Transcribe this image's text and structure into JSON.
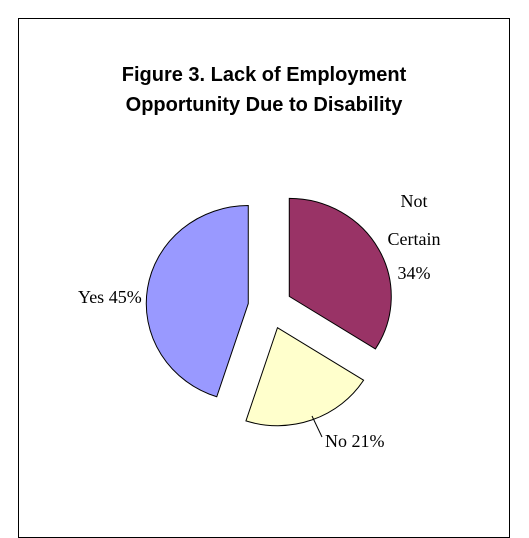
{
  "chart_data": {
    "type": "pie",
    "title": [
      "Figure 3.  Lack of Employment",
      "Opportunity Due to Disability"
    ],
    "slices": [
      {
        "label": "Not Certain",
        "value": 34,
        "text_lines": [
          "Not",
          "Certain",
          "34%"
        ],
        "color": "#993366"
      },
      {
        "label": "No",
        "value": 21,
        "text_lines": [
          "No 21%"
        ],
        "color": "#FFFFCC"
      },
      {
        "label": "Yes",
        "value": 45,
        "text_lines": [
          "Yes 45%"
        ],
        "color": "#9999FF"
      }
    ]
  }
}
